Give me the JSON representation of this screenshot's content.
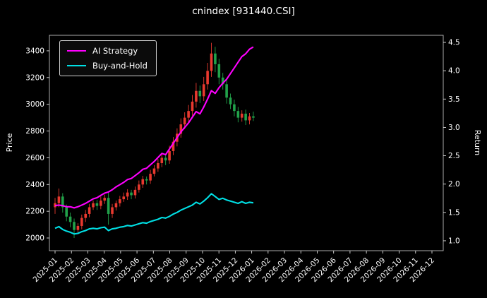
{
  "chart_data": {
    "type": "candlestick",
    "title": "cnindex [931440.CSI]",
    "background": "#000000",
    "text_color": "#ffffff",
    "ylabel_left": "Price",
    "ylabel_right": "Return",
    "grid": false,
    "legend_position": "upper-left",
    "x_tick_labels": [
      "2025-01",
      "2025-02",
      "2025-03",
      "2025-04",
      "2025-05",
      "2025-06",
      "2025-07",
      "2025-08",
      "2025-09",
      "2025-10",
      "2025-11",
      "2025-12",
      "2026-01",
      "2026-02",
      "2026-03",
      "2026-04",
      "2026-05",
      "2026-06",
      "2026-07",
      "2026-08",
      "2026-09",
      "2026-10",
      "2026-11",
      "2026-12"
    ],
    "price_axis": {
      "ticks": [
        2000,
        2200,
        2400,
        2600,
        2800,
        3000,
        3200,
        3400
      ],
      "range": [
        1905,
        3516
      ]
    },
    "return_axis": {
      "ticks": [
        "1.0",
        "1.5",
        "2.0",
        "2.5",
        "3.0",
        "3.5",
        "4.0",
        "4.5"
      ],
      "range": [
        0.825,
        4.625
      ]
    },
    "candles": {
      "interval": "weekly",
      "start_month": "2025-01",
      "end_month": "2026-01",
      "month_step": 0.2327,
      "up_color": "#e8392f",
      "down_color": "#21a24a",
      "open": [
        2230,
        2260,
        2310,
        2230,
        2160,
        2120,
        2060,
        2090,
        2150,
        2180,
        2230,
        2260,
        2240,
        2280,
        2300,
        2180,
        2230,
        2260,
        2290,
        2310,
        2340,
        2320,
        2360,
        2400,
        2440,
        2430,
        2480,
        2520,
        2560,
        2600,
        2580,
        2650,
        2720,
        2780,
        2850,
        2900,
        2950,
        3020,
        3100,
        3060,
        3150,
        3250,
        3380,
        3300,
        3200,
        3150,
        3050,
        3000,
        2950,
        2900,
        2930,
        2880,
        2910
      ],
      "high": [
        2300,
        2370,
        2335,
        2250,
        2190,
        2145,
        2110,
        2175,
        2210,
        2255,
        2280,
        2285,
        2310,
        2325,
        2340,
        2255,
        2280,
        2315,
        2340,
        2365,
        2360,
        2385,
        2430,
        2465,
        2460,
        2510,
        2545,
        2590,
        2635,
        2625,
        2690,
        2755,
        2820,
        2895,
        2940,
        2995,
        3070,
        3160,
        3140,
        3205,
        3310,
        3460,
        3430,
        3340,
        3235,
        3190,
        3080,
        3035,
        2980,
        2955,
        2960,
        2935,
        2945
      ],
      "low": [
        2180,
        2230,
        2190,
        2125,
        2080,
        2000,
        2030,
        2065,
        2120,
        2155,
        2210,
        2210,
        2215,
        2255,
        2100,
        2150,
        2205,
        2235,
        2270,
        2285,
        2290,
        2295,
        2340,
        2375,
        2400,
        2405,
        2460,
        2495,
        2530,
        2545,
        2555,
        2620,
        2685,
        2750,
        2815,
        2860,
        2915,
        2975,
        3010,
        3025,
        3110,
        3205,
        3240,
        3150,
        3110,
        3005,
        2965,
        2910,
        2865,
        2870,
        2845,
        2850,
        2875
      ],
      "close": [
        2260,
        2310,
        2230,
        2160,
        2120,
        2060,
        2090,
        2150,
        2180,
        2230,
        2260,
        2240,
        2280,
        2300,
        2180,
        2230,
        2260,
        2290,
        2310,
        2340,
        2320,
        2360,
        2400,
        2440,
        2430,
        2480,
        2520,
        2560,
        2600,
        2580,
        2650,
        2720,
        2780,
        2850,
        2900,
        2950,
        3020,
        3100,
        3060,
        3150,
        3250,
        3380,
        3300,
        3200,
        3150,
        3050,
        3000,
        2950,
        2900,
        2930,
        2880,
        2910,
        2900
      ]
    },
    "series": [
      {
        "name": "AI Strategy",
        "axis": "return",
        "color": "#ff00ff",
        "values": [
          1.62,
          1.63,
          1.62,
          1.6,
          1.6,
          1.58,
          1.6,
          1.63,
          1.66,
          1.7,
          1.74,
          1.76,
          1.8,
          1.84,
          1.86,
          1.9,
          1.95,
          1.99,
          2.03,
          2.08,
          2.1,
          2.15,
          2.2,
          2.26,
          2.28,
          2.34,
          2.4,
          2.47,
          2.54,
          2.52,
          2.62,
          2.72,
          2.82,
          2.92,
          3.0,
          3.08,
          3.18,
          3.28,
          3.24,
          3.36,
          3.5,
          3.65,
          3.6,
          3.7,
          3.78,
          3.85,
          3.95,
          4.05,
          4.15,
          4.25,
          4.3,
          4.38,
          4.42
        ]
      },
      {
        "name": "Buy-and-Hold",
        "axis": "return",
        "color": "#00e0e5",
        "values": [
          1.22,
          1.25,
          1.2,
          1.17,
          1.15,
          1.12,
          1.13,
          1.16,
          1.18,
          1.21,
          1.22,
          1.21,
          1.23,
          1.24,
          1.18,
          1.21,
          1.22,
          1.24,
          1.25,
          1.27,
          1.26,
          1.28,
          1.3,
          1.32,
          1.31,
          1.34,
          1.36,
          1.38,
          1.41,
          1.4,
          1.43,
          1.47,
          1.5,
          1.54,
          1.57,
          1.6,
          1.63,
          1.68,
          1.65,
          1.7,
          1.76,
          1.83,
          1.78,
          1.73,
          1.75,
          1.72,
          1.7,
          1.68,
          1.66,
          1.69,
          1.66,
          1.68,
          1.67
        ]
      }
    ]
  }
}
